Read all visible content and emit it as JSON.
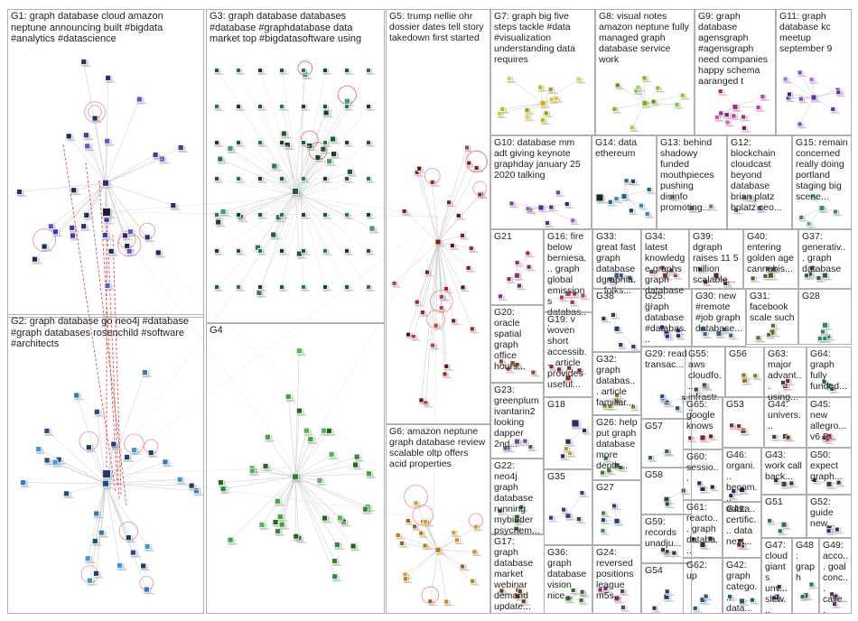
{
  "graph_title": "",
  "groups": [
    {
      "id": "G1",
      "text": "G1: graph database cloud amazon neptune announcing built #bigdata #analytics #datascience",
      "palette": [
        "#2d2d6e",
        "#3b3bb0",
        "#1a2a5a",
        "#5a5ad0"
      ]
    },
    {
      "id": "G2",
      "text": "G2: graph database go neo4j #database #graph databases rosenchild #software #architects",
      "palette": [
        "#1f4e8c",
        "#2f7bbf",
        "#3a9ad9",
        "#164070"
      ]
    },
    {
      "id": "G3",
      "text": "G3: graph database databases #database #graphdatabase data market top #bigdatasoftware using",
      "palette": [
        "#1d5c3a",
        "#2a7a4f",
        "#3f9e6a",
        "#14422a"
      ]
    },
    {
      "id": "G4",
      "text": "G4",
      "palette": [
        "#2e8b2e",
        "#3aa63a",
        "#1f6b1f",
        "#4dbb4d"
      ]
    },
    {
      "id": "G5",
      "text": "G5: trump nellie ohr dossier dates tell story takedown first started",
      "palette": [
        "#8b1a1a",
        "#b02424",
        "#6b1010",
        "#c43a3a"
      ]
    },
    {
      "id": "G6",
      "text": "G6: amazon neptune graph database review scalable oltp offers acid properties",
      "palette": [
        "#c47a0a",
        "#e09a1a",
        "#a86008",
        "#d88a10"
      ]
    },
    {
      "id": "G7",
      "text": "G7: graph big five steps tackle #data #visualization understanding data requires",
      "palette": [
        "#c8b400",
        "#d8c820",
        "#a89a00",
        "#e0d040"
      ]
    },
    {
      "id": "G8",
      "text": "G8: visual notes amazon neptune fully managed graph database service work",
      "palette": [
        "#7ab800",
        "#8ac820",
        "#5a9800",
        "#9ad840"
      ]
    },
    {
      "id": "G9",
      "text": "G9: graph database agensgraph #agensgraph need companies happy schema aaranged t",
      "palette": [
        "#b02090",
        "#d030b0",
        "#901070",
        "#e050c0"
      ]
    },
    {
      "id": "G10",
      "text": "G10: database mm adt giving keynote graphday january 25 2020 talking",
      "palette": [
        "#5a2a8a",
        "#7a3ab0",
        "#3a1a6a",
        "#9a5ad0"
      ]
    },
    {
      "id": "G11",
      "text": "G11: graph database kc meetup september 9",
      "palette": [
        "#6a2ab0",
        "#8a4ad0",
        "#4a1a90",
        "#aa6af0"
      ]
    },
    {
      "id": "G12",
      "text": "G12: blockchain cloudcast beyond database brian platz bplatz ceo...",
      "palette": [
        "#5a7a9a",
        "#7a9aba"
      ]
    },
    {
      "id": "G13",
      "text": "G13: behind shadowy funded mouthpieces pushing disinfo promoting...",
      "palette": [
        "#7a7a7a"
      ]
    },
    {
      "id": "G14",
      "text": "G14: data ethereum",
      "palette": [
        "#1a6a8a",
        "#2a8aaa",
        "#0a4a6a"
      ]
    },
    {
      "id": "G15",
      "text": "G15: remain concerned really doing portland staging big scene...",
      "palette": [
        "#3a8a6a",
        "#5aaa8a"
      ]
    },
    {
      "id": "G16",
      "text": "G16: fire below berniesa... graph global emissions databas...",
      "palette": [
        "#c03070",
        "#9a3a4a"
      ]
    },
    {
      "id": "G17",
      "text": "G17: graph database market webinar demand update...",
      "palette": [
        "#6a3a1a"
      ]
    },
    {
      "id": "G18",
      "text": "G18",
      "palette": [
        "#2a2a6a",
        "#c89a1a"
      ]
    },
    {
      "id": "G19",
      "text": "G19: v woven short accessib... article provides useful...",
      "palette": [
        "#8a2a2a"
      ]
    },
    {
      "id": "G20",
      "text": "G20: oracle spatial graph office hours...",
      "palette": [
        "#9a4a2a"
      ]
    },
    {
      "id": "G21",
      "text": "G21",
      "palette": [
        "#a02a6a",
        "#8a2a8a",
        "#6a2a8a"
      ]
    },
    {
      "id": "G22",
      "text": "G22: neo4j graph database running mybinder psychem...",
      "palette": [
        "#2a6a3a"
      ]
    },
    {
      "id": "G23",
      "text": "G23: greenplum ivantarin2 looking dapper 2nd...",
      "palette": [
        "#6a4aa0"
      ]
    },
    {
      "id": "G24",
      "text": "G24: reversed positions league m5s...",
      "palette": [
        "#8a2a6a"
      ]
    },
    {
      "id": "G25",
      "text": "G25: graph database #databas...",
      "palette": [
        "#2a2a8a"
      ]
    },
    {
      "id": "G26",
      "text": "G26: help put graph database more depth...",
      "palette": [
        "#3a7a3a"
      ]
    },
    {
      "id": "G27",
      "text": "G27",
      "palette": [
        "#2a3a8a",
        "#3a8a5a"
      ]
    },
    {
      "id": "G28",
      "text": "G28",
      "palette": [
        "#2a8a5a"
      ]
    },
    {
      "id": "G29",
      "text": "G29: read transac...",
      "palette": [
        "#2a4a8a"
      ]
    },
    {
      "id": "G30",
      "text": "G30: new #remote #job graph database...",
      "palette": [
        "#2a6a8a"
      ]
    },
    {
      "id": "G31",
      "text": "G31: facebook scale such",
      "palette": [
        "#6a6a2a"
      ]
    },
    {
      "id": "G32",
      "text": "G32: graph databas... article familiar...",
      "palette": [
        "#8a7a2a"
      ]
    },
    {
      "id": "G33",
      "text": "G33: great fast graph database dgraphla... folks...",
      "palette": [
        "#3a5a8a"
      ]
    },
    {
      "id": "G34",
      "text": "G34: latest knowledge graphs graph database...",
      "palette": [
        "#8a3a3a"
      ]
    },
    {
      "id": "G35",
      "text": "G35",
      "palette": [
        "#3a3a8a"
      ]
    },
    {
      "id": "G36",
      "text": "G36: graph database vision nice...",
      "palette": [
        "#3a6a3a"
      ]
    },
    {
      "id": "G37",
      "text": "G37: generativ... graph database",
      "palette": [
        "#2a5a5a"
      ]
    },
    {
      "id": "G38",
      "text": "G38",
      "palette": [
        "#2a3a6a"
      ]
    },
    {
      "id": "G39",
      "text": "G39: dgraph raises 11 5 million scalable...",
      "palette": [
        "#5a2a2a"
      ]
    },
    {
      "id": "G40",
      "text": "G40: entering golden age cannabis...",
      "palette": [
        "#5a5a2a"
      ]
    },
    {
      "id": "G41",
      "text": "G41: certific... data next...",
      "palette": [
        "#6a2a2a"
      ]
    },
    {
      "id": "G42",
      "text": "G42: graph catego... data...",
      "palette": [
        "#2a5a6a"
      ]
    },
    {
      "id": "G43",
      "text": "G43: work call back...",
      "palette": [
        "#3a3a3a"
      ]
    },
    {
      "id": "G44",
      "text": "G44: univers...",
      "palette": [
        "#5a3a2a"
      ]
    },
    {
      "id": "G45",
      "text": "G45: new allegro... v6 5...",
      "palette": [
        "#a02a4a"
      ]
    },
    {
      "id": "G46",
      "text": "G46: organi... becom... #data...",
      "palette": [
        "#2a2a5a"
      ]
    },
    {
      "id": "G47",
      "text": "G47: cloud giants unv... slew...",
      "palette": [
        "#4a2a6a"
      ]
    },
    {
      "id": "G48",
      "text": "G48: graph",
      "palette": [
        "#2a6a6a"
      ]
    },
    {
      "id": "G49",
      "text": "G49: acco... goal conc... calle...",
      "palette": [
        "#6a2a5a"
      ]
    },
    {
      "id": "G50",
      "text": "G50: expect graph...",
      "palette": [
        "#2a4a3a"
      ]
    },
    {
      "id": "G51",
      "text": "G51",
      "palette": [
        "#2a7a4a"
      ]
    },
    {
      "id": "G52",
      "text": "G52: guide new...",
      "palette": [
        "#3a2a6a"
      ]
    },
    {
      "id": "G53",
      "text": "G53",
      "palette": [
        "#8a2a2a"
      ]
    },
    {
      "id": "G54",
      "text": "G54",
      "palette": [
        "#2a3a5a"
      ]
    },
    {
      "id": "G55",
      "text": "G55: aws cloudfo... infrastr...",
      "palette": [
        "#2a5a3a"
      ]
    },
    {
      "id": "G56",
      "text": "G56",
      "palette": [
        "#8a7a1a"
      ]
    },
    {
      "id": "G57",
      "text": "G57",
      "palette": [
        "#2a6a4a"
      ]
    },
    {
      "id": "G58",
      "text": "G58",
      "palette": [
        "#2a4a4a"
      ]
    },
    {
      "id": "G59",
      "text": "G59: records unadju...",
      "palette": [
        "#4a2a4a"
      ]
    },
    {
      "id": "G60",
      "text": "G60: sessio...",
      "palette": [
        "#2a2a4a"
      ]
    },
    {
      "id": "G61",
      "text": "G61: reacto... graph databa...",
      "palette": [
        "#3a2a2a"
      ]
    },
    {
      "id": "G62",
      "text": "G62: up",
      "palette": [
        "#2a5a7a"
      ]
    },
    {
      "id": "G63",
      "text": "G63: major advant... using...",
      "palette": [
        "#6a2a3a"
      ]
    },
    {
      "id": "G64",
      "text": "G64: graph fully funded...",
      "palette": [
        "#2a6a2a"
      ]
    },
    {
      "id": "G65",
      "text": "G65: google knows",
      "palette": [
        "#8a1a1a"
      ]
    }
  ]
}
